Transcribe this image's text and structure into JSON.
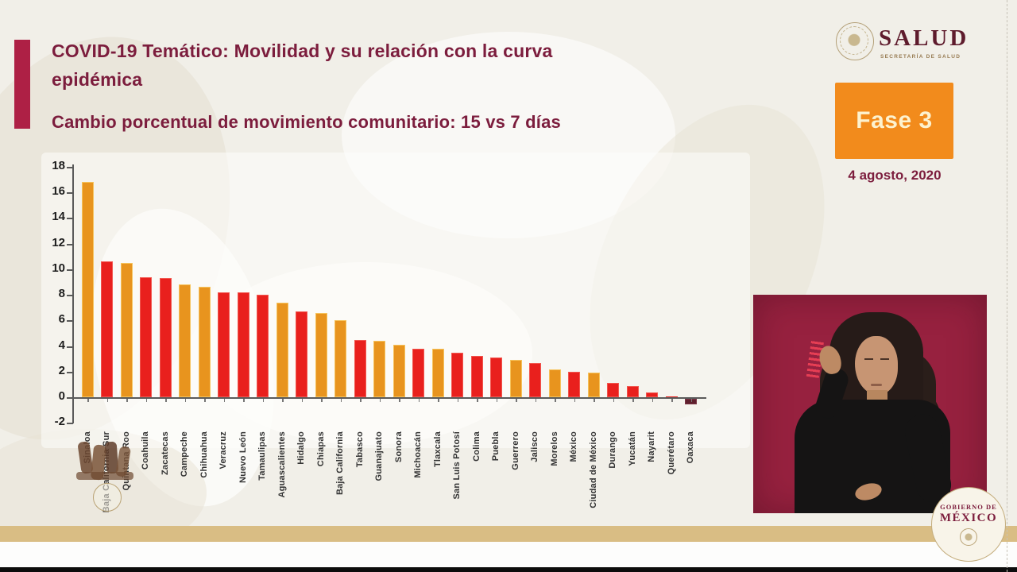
{
  "header": {
    "title_line1": "COVID-19 Temático: Movilidad y su relación con la curva",
    "title_line2": "epidémica",
    "subtitle": "Cambio porcentual de movimiento comunitario: 15 vs 7 días"
  },
  "branding": {
    "salud_wordmark": "SALUD",
    "salud_tagline": "SECRETARÍA DE SALUD",
    "gobierno_line1": "GOBIERNO DE",
    "gobierno_line2": "MÉXICO",
    "icons": {
      "salud_seal": "circular-eagle-seal",
      "gobierno_seal": "circular-eagle-seal"
    }
  },
  "status": {
    "phase_label": "Fase 3",
    "date": "4 agosto, 2020"
  },
  "colors": {
    "maroon_text": "#7c1d3d",
    "accent_bar": "#ae2045",
    "phase_box": "#f28b1c",
    "gold_band": "#d9bd84",
    "interpreter_background": "#97213f"
  },
  "chart_data": {
    "type": "bar",
    "title": "Cambio porcentual de movimiento comunitario: 15 vs 7 días",
    "xlabel": "",
    "ylabel": "",
    "ylim": [
      -2,
      18
    ],
    "yticks": [
      18,
      16,
      14,
      12,
      10,
      8,
      6,
      4,
      2,
      0,
      -2
    ],
    "grid": false,
    "legend": null,
    "categories": [
      "Sinaloa",
      "Baja California Sur",
      "Quintana Roo",
      "Coahuila",
      "Zacatecas",
      "Campeche",
      "Chihuahua",
      "Veracruz",
      "Nuevo León",
      "Tamaulipas",
      "Aguascalientes",
      "Hidalgo",
      "Chiapas",
      "Baja California",
      "Tabasco",
      "Guanajuato",
      "Sonora",
      "Michoacán",
      "Tlaxcala",
      "San Luis Potosí",
      "Colima",
      "Puebla",
      "Guerrero",
      "Jalisco",
      "Morelos",
      "México",
      "Ciudad de México",
      "Durango",
      "Yucatán",
      "Nayarit",
      "Querétaro",
      "Oaxaca"
    ],
    "values": [
      16.8,
      10.6,
      10.5,
      9.4,
      9.3,
      8.8,
      8.6,
      8.2,
      8.2,
      8.0,
      7.4,
      6.7,
      6.6,
      6.0,
      4.5,
      4.4,
      4.1,
      3.8,
      3.8,
      3.5,
      3.2,
      3.1,
      2.9,
      2.7,
      2.2,
      2.0,
      1.9,
      1.1,
      0.9,
      0.35,
      0.05,
      -0.45
    ],
    "bar_colors": [
      "orange",
      "red",
      "orange",
      "red",
      "red",
      "orange",
      "orange",
      "red",
      "red",
      "red",
      "orange",
      "red",
      "orange",
      "orange",
      "red",
      "orange",
      "orange",
      "red",
      "orange",
      "red",
      "red",
      "red",
      "orange",
      "red",
      "orange",
      "red",
      "orange",
      "red",
      "red",
      "red",
      "red",
      "dark"
    ],
    "color_map": {
      "orange": "#E8941E",
      "red": "#E9201D",
      "dark": "#5E1F2D"
    },
    "border_map": {
      "orange": "#F6C35C",
      "red": "#F2574F",
      "dark": "#7A3344"
    }
  }
}
